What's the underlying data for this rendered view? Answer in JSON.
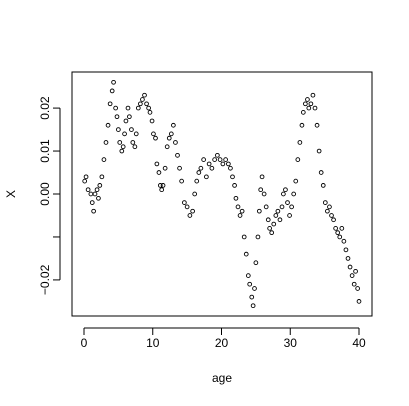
{
  "chart_data": {
    "type": "scatter",
    "xlabel": "age",
    "ylabel": "X",
    "x": [
      0.1,
      0.3,
      0.6,
      1.0,
      1.2,
      1.4,
      1.6,
      1.9,
      2.1,
      2.3,
      2.6,
      2.9,
      3.2,
      3.5,
      3.8,
      4.1,
      4.3,
      4.6,
      4.8,
      5.0,
      5.2,
      5.5,
      5.7,
      5.9,
      6.1,
      6.4,
      6.6,
      6.9,
      7.1,
      7.4,
      7.6,
      7.9,
      8.2,
      8.5,
      8.8,
      9.1,
      9.4,
      9.6,
      9.9,
      10.1,
      10.4,
      10.6,
      10.9,
      11.1,
      11.3,
      11.5,
      11.8,
      12.1,
      12.4,
      12.7,
      13.0,
      13.3,
      13.6,
      13.9,
      14.2,
      14.6,
      15.0,
      15.4,
      15.8,
      16.1,
      16.4,
      16.7,
      17.0,
      17.4,
      17.8,
      18.2,
      18.6,
      19.0,
      19.4,
      19.8,
      20.2,
      20.6,
      21.0,
      21.3,
      21.6,
      21.9,
      22.1,
      22.4,
      22.7,
      23.0,
      23.3,
      23.6,
      23.9,
      24.1,
      24.4,
      24.6,
      24.8,
      25.0,
      25.3,
      25.5,
      25.7,
      25.9,
      26.2,
      26.5,
      26.8,
      27.0,
      27.3,
      27.6,
      27.9,
      28.2,
      28.5,
      28.8,
      29.0,
      29.3,
      29.6,
      29.9,
      30.2,
      30.5,
      30.8,
      31.1,
      31.4,
      31.7,
      31.9,
      32.2,
      32.5,
      32.7,
      33.0,
      33.3,
      33.6,
      33.9,
      34.2,
      34.5,
      34.8,
      35.1,
      35.4,
      35.7,
      36.0,
      36.3,
      36.6,
      36.9,
      37.2,
      37.5,
      37.8,
      38.1,
      38.4,
      38.7,
      39.0,
      39.3,
      39.5,
      39.8,
      40.0
    ],
    "values": [
      0.003,
      0.004,
      0.001,
      0,
      -0.002,
      -0.004,
      0,
      0.001,
      -0.001,
      0.002,
      0.004,
      0.008,
      0.012,
      0.016,
      0.021,
      0.024,
      0.026,
      0.02,
      0.018,
      0.015,
      0.012,
      0.01,
      0.011,
      0.014,
      0.017,
      0.02,
      0.018,
      0.015,
      0.012,
      0.011,
      0.014,
      0.02,
      0.021,
      0.022,
      0.023,
      0.021,
      0.02,
      0.019,
      0.017,
      0.014,
      0.013,
      0.007,
      0.005,
      0.002,
      0.001,
      0.002,
      0.006,
      0.011,
      0.013,
      0.014,
      0.016,
      0.012,
      0.009,
      0.006,
      0.003,
      -0.002,
      -0.003,
      -0.005,
      -0.004,
      0,
      0.003,
      0.005,
      0.006,
      0.008,
      0.004,
      0.007,
      0.006,
      0.008,
      0.009,
      0.008,
      0.007,
      0.008,
      0.007,
      0.006,
      0.004,
      0.002,
      -0.001,
      -0.003,
      -0.005,
      -0.004,
      -0.01,
      -0.014,
      -0.019,
      -0.021,
      -0.024,
      -0.026,
      -0.022,
      -0.016,
      -0.01,
      -0.004,
      0.001,
      0.004,
      0,
      -0.003,
      -0.006,
      -0.008,
      -0.009,
      -0.007,
      -0.005,
      -0.004,
      -0.006,
      -0.003,
      0,
      0.001,
      -0.002,
      -0.005,
      -0.003,
      0,
      0.003,
      0.008,
      0.012,
      0.016,
      0.019,
      0.021,
      0.022,
      0.02,
      0.021,
      0.023,
      0.02,
      0.016,
      0.01,
      0.005,
      0.002,
      -0.002,
      -0.004,
      -0.003,
      -0.005,
      -0.006,
      -0.008,
      -0.009,
      -0.01,
      -0.008,
      -0.011,
      -0.013,
      -0.015,
      -0.017,
      -0.019,
      -0.021,
      -0.018,
      -0.022,
      -0.025
    ],
    "color": "#000000",
    "xlim": [
      -1.745,
      41.89
    ],
    "xticks": [
      0,
      10,
      20,
      30,
      40
    ],
    "ylim": [
      -0.0284,
      0.0284
    ],
    "yticks": [
      {
        "value": -0.02,
        "label": "−0.02"
      },
      {
        "value": 0,
        "label": "0.00"
      },
      0.01,
      0.02
    ],
    "ytick_marks": [
      -0.02,
      -0.01,
      0,
      0.01,
      0.02
    ]
  }
}
